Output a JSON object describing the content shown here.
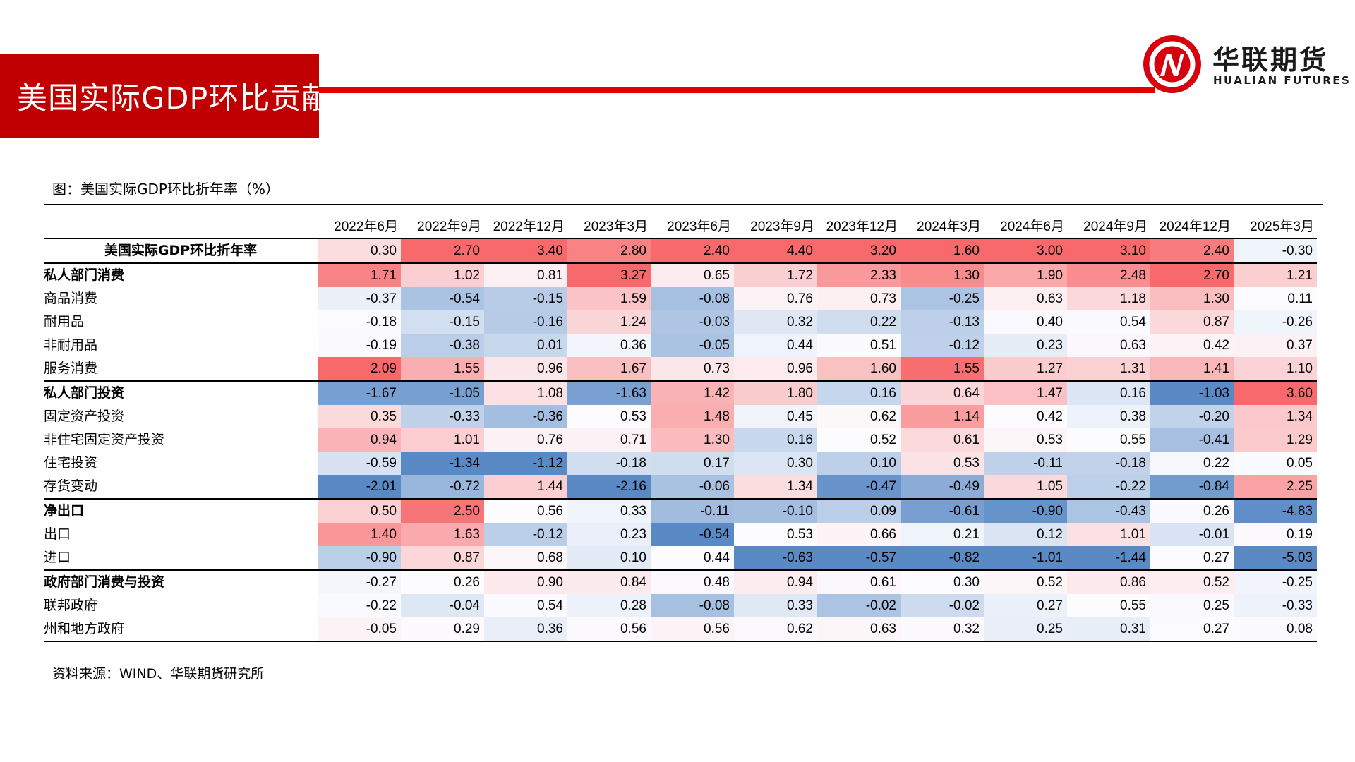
{
  "header": {
    "title": "美国实际GDP环比贡献",
    "logo_cn": "华联期货",
    "logo_en": "HUALIAN FUTURES"
  },
  "figure_title": "图：美国实际GDP环比折年率（%）",
  "source": "资料来源：WIND、华联期货研究所",
  "colors": {
    "brand_red": "#c00000",
    "heat_positive": "#f8696b",
    "heat_neutral": "#fcfcff",
    "heat_negative": "#5a8ac6"
  },
  "chart_data": {
    "type": "heatmap",
    "title": "图：美国实际GDP环比折年率（%）",
    "color_scale": "per-column; red = high, white = mid, blue = low",
    "columns": [
      "2022年6月",
      "2022年9月",
      "2022年12月",
      "2023年3月",
      "2023年6月",
      "2023年9月",
      "2023年12月",
      "2024年3月",
      "2024年6月",
      "2024年9月",
      "2024年12月",
      "2025年3月"
    ],
    "rows": [
      {
        "label": "美国实际GDP环比折年率",
        "level": 0,
        "values": [
          0.3,
          2.7,
          3.4,
          2.8,
          2.4,
          4.4,
          3.2,
          1.6,
          3.0,
          3.1,
          2.4,
          -0.3
        ]
      },
      {
        "label": "私人部门消费",
        "level": 1,
        "values": [
          1.71,
          1.02,
          0.81,
          3.27,
          0.65,
          1.72,
          2.33,
          1.3,
          1.9,
          2.48,
          2.7,
          1.21
        ]
      },
      {
        "label": "商品消费",
        "level": 2,
        "values": [
          -0.37,
          -0.54,
          -0.15,
          1.59,
          -0.08,
          0.76,
          0.73,
          -0.25,
          0.63,
          1.18,
          1.3,
          0.11
        ]
      },
      {
        "label": "耐用品",
        "level": 3,
        "values": [
          -0.18,
          -0.15,
          -0.16,
          1.24,
          -0.03,
          0.32,
          0.22,
          -0.13,
          0.4,
          0.54,
          0.87,
          -0.26
        ]
      },
      {
        "label": "非耐用品",
        "level": 3,
        "values": [
          -0.19,
          -0.38,
          0.01,
          0.36,
          -0.05,
          0.44,
          0.51,
          -0.12,
          0.23,
          0.63,
          0.42,
          0.37
        ]
      },
      {
        "label": "服务消费",
        "level": 2,
        "values": [
          2.09,
          1.55,
          0.96,
          1.67,
          0.73,
          0.96,
          1.6,
          1.55,
          1.27,
          1.31,
          1.41,
          1.1
        ]
      },
      {
        "label": "私人部门投资",
        "level": 1,
        "values": [
          -1.67,
          -1.05,
          1.08,
          -1.63,
          1.42,
          1.8,
          0.16,
          0.64,
          1.47,
          0.16,
          -1.03,
          3.6
        ]
      },
      {
        "label": "固定资产投资",
        "level": 2,
        "values": [
          0.35,
          -0.33,
          -0.36,
          0.53,
          1.48,
          0.45,
          0.62,
          1.14,
          0.42,
          0.38,
          -0.2,
          1.34
        ]
      },
      {
        "label": "非住宅固定资产投资",
        "level": 3,
        "values": [
          0.94,
          1.01,
          0.76,
          0.71,
          1.3,
          0.16,
          0.52,
          0.61,
          0.53,
          0.55,
          -0.41,
          1.29
        ]
      },
      {
        "label": "住宅投资",
        "level": 3,
        "values": [
          -0.59,
          -1.34,
          -1.12,
          -0.18,
          0.17,
          0.3,
          0.1,
          0.53,
          -0.11,
          -0.18,
          0.22,
          0.05
        ]
      },
      {
        "label": "存货变动",
        "level": 2,
        "values": [
          -2.01,
          -0.72,
          1.44,
          -2.16,
          -0.06,
          1.34,
          -0.47,
          -0.49,
          1.05,
          -0.22,
          -0.84,
          2.25
        ]
      },
      {
        "label": "净出口",
        "level": 1,
        "values": [
          0.5,
          2.5,
          0.56,
          0.33,
          -0.11,
          -0.1,
          0.09,
          -0.61,
          -0.9,
          -0.43,
          0.26,
          -4.83
        ]
      },
      {
        "label": "出口",
        "level": 2,
        "values": [
          1.4,
          1.63,
          -0.12,
          0.23,
          -0.54,
          0.53,
          0.66,
          0.21,
          0.12,
          1.01,
          -0.01,
          0.19
        ]
      },
      {
        "label": "进口",
        "level": 2,
        "values": [
          -0.9,
          0.87,
          0.68,
          0.1,
          0.44,
          -0.63,
          -0.57,
          -0.82,
          -1.01,
          -1.44,
          0.27,
          -5.03
        ]
      },
      {
        "label": "政府部门消费与投资",
        "level": 1,
        "values": [
          -0.27,
          0.26,
          0.9,
          0.84,
          0.48,
          0.94,
          0.61,
          0.3,
          0.52,
          0.86,
          0.52,
          -0.25
        ]
      },
      {
        "label": "联邦政府",
        "level": 2,
        "values": [
          -0.22,
          -0.04,
          0.54,
          0.28,
          -0.08,
          0.33,
          -0.02,
          -0.02,
          0.27,
          0.55,
          0.25,
          -0.33
        ]
      },
      {
        "label": "州和地方政府",
        "level": 2,
        "values": [
          -0.05,
          0.29,
          0.36,
          0.56,
          0.56,
          0.62,
          0.63,
          0.32,
          0.25,
          0.31,
          0.27,
          0.08
        ]
      }
    ]
  }
}
